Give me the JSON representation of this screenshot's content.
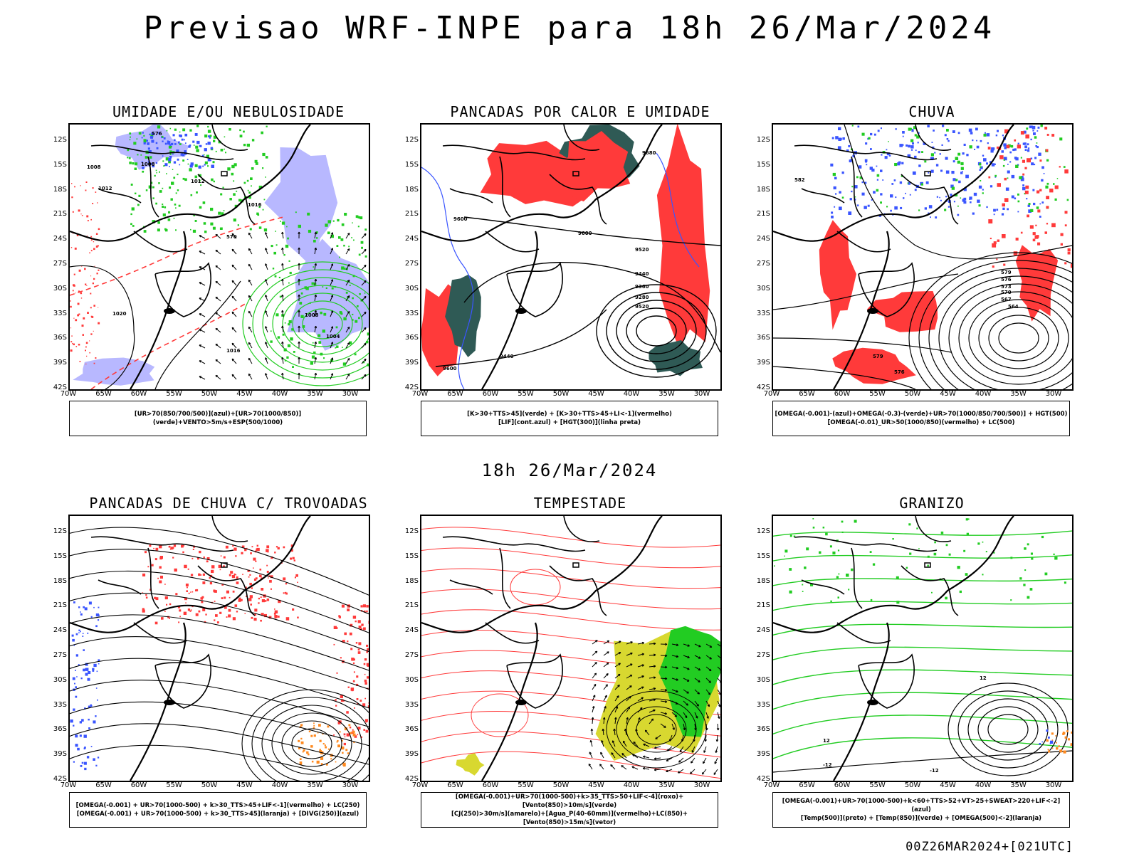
{
  "header": {
    "title": "Previsao WRF-INPE  para 18h 26/Mar/2024",
    "subtitle": "18h 26/Mar/2024",
    "footer": "00Z26MAR2024+[021UTC]"
  },
  "map": {
    "lat_ticks": [
      "12S",
      "15S",
      "18S",
      "21S",
      "24S",
      "27S",
      "30S",
      "33S",
      "36S",
      "39S",
      "42S"
    ],
    "lon_ticks": [
      "70W",
      "65W",
      "60W",
      "55W",
      "50W",
      "45W",
      "40W",
      "35W",
      "30W"
    ]
  },
  "colors": {
    "blue": "#3a55ff",
    "green": "#22cc22",
    "red": "#ff3a3a",
    "dark_teal": "#2f5a55",
    "lavender": "#b8b8ff",
    "yellow": "#d8d830",
    "orange": "#ff8a20",
    "black": "#000000"
  },
  "panels": [
    {
      "title": "UMIDADE E/OU NEBULOSIDADE",
      "legend": [
        "[UR>70(850/700/500)](azul)+[UR>70(1000/850)](verde)+VENTO>5m/s+ESP(500/1000)"
      ],
      "contour_labels": [
        "1008",
        "1008",
        "1012",
        "1012",
        "1016",
        "1016",
        "1020",
        "1004",
        "1008",
        "576",
        "570"
      ]
    },
    {
      "title": "PANCADAS POR CALOR E UMIDADE",
      "legend": [
        "[K>30+TTS>45](verde) + [K>30+TTS>45+LI<-1](vermelho)",
        "[LIF](cont.azul) + [HGT(300)](linha preta)"
      ],
      "contour_labels": [
        "9680",
        "9600",
        "9600",
        "9520",
        "9440",
        "9360",
        "9280",
        "9520",
        "9440",
        "9600"
      ]
    },
    {
      "title": "CHUVA",
      "legend": [
        "[OMEGA(-0.001)-(azul)+OMEGA(-0.3)-(verde)+UR>70(1000/850/700/500)] + HGT(500)",
        "[OMEGA(-0.01)_UR>50(1000/850)(vermelho) + LC(500)"
      ],
      "contour_labels": [
        "585",
        "582",
        "579",
        "576",
        "573",
        "570",
        "567",
        "564",
        "579",
        "576"
      ]
    },
    {
      "title": "PANCADAS DE CHUVA C/ TROVOADAS",
      "legend": [
        "[OMEGA(-0.001) + UR>70(1000-500) + k>30_TTS>45+LIF<-1](vermelho) + LC(250)",
        "[OMEGA(-0.001) + UR>70(1000-500) + k>30_TTS>45](laranja) + [DIVG(250)](azul)"
      ],
      "contour_labels": []
    },
    {
      "title": "TEMPESTADE",
      "legend": [
        "[OMEGA(-0.001)+UR>70(1000-500)+k>35_TTS>50+LIF<-4](roxo)+[Vento(850)>10m/s](verde)",
        "[CJ(250)>30m/s](amarelo)+[Agua_P(40-60mm)](vermelho)+LC(850)+[Vento(850)>15m/s](vetor)"
      ],
      "contour_labels": []
    },
    {
      "title": "GRANIZO",
      "legend": [
        "[OMEGA(-0.001)+UR>70(1000-500)+k<60+TTS>52+VT>25+SWEAT>220+LIF<-2](azul)",
        "[Temp(500)](preto) + [Temp(850)](verde) + [OMEGA(500)<-2](laranja)"
      ],
      "contour_labels": [
        "12",
        "-12",
        "-12",
        "12"
      ]
    }
  ]
}
